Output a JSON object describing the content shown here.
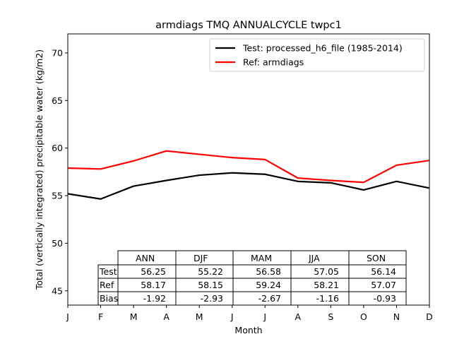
{
  "chart_data": {
    "type": "line",
    "title": "armdiags TMQ ANNUALCYCLE twpc1",
    "xlabel": "Month",
    "ylabel": "Total (vertically integrated) precipitable water (kg/m2)",
    "x_ticks": [
      "J",
      "F",
      "M",
      "A",
      "M",
      "J",
      "J",
      "A",
      "S",
      "O",
      "N",
      "D"
    ],
    "ylim": [
      43.5,
      72
    ],
    "y_ticks": [
      45,
      50,
      55,
      60,
      65,
      70
    ],
    "grid": false,
    "legend_position": "top-right",
    "series": [
      {
        "name": "Test: processed_h6_file (1985-2014)",
        "color": "#000000",
        "values": [
          55.2,
          54.65,
          56.0,
          56.6,
          57.15,
          57.4,
          57.25,
          56.5,
          56.35,
          55.6,
          56.5,
          55.8
        ]
      },
      {
        "name": "Ref: armdiags",
        "color": "#ff0000",
        "values": [
          57.9,
          57.8,
          58.65,
          59.7,
          59.35,
          59.0,
          58.8,
          56.85,
          56.6,
          56.4,
          58.2,
          58.7
        ]
      }
    ],
    "table": {
      "columns": [
        "ANN",
        "DJF",
        "MAM",
        "JJA",
        "SON"
      ],
      "rows": [
        {
          "label": "Test",
          "values": [
            "56.25",
            "55.22",
            "56.58",
            "57.05",
            "56.14"
          ]
        },
        {
          "label": "Ref",
          "values": [
            "58.17",
            "58.15",
            "59.24",
            "58.21",
            "57.07"
          ]
        },
        {
          "label": "Bias",
          "values": [
            "-1.92",
            "-2.93",
            "-2.67",
            "-1.16",
            "-0.93"
          ]
        }
      ]
    }
  }
}
